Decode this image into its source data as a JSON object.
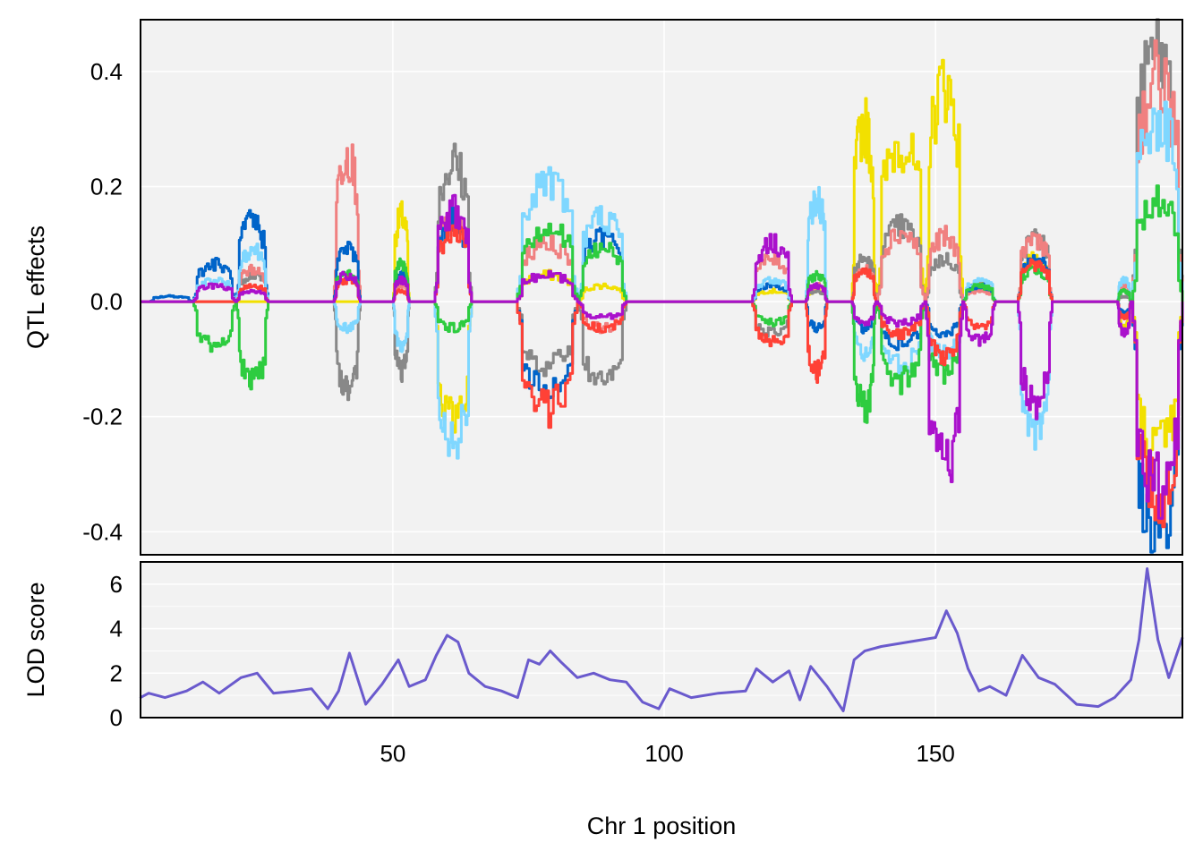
{
  "chart_data": [
    {
      "type": "line",
      "ylabel": "QTL effects",
      "xlabel": "Chr 1 position",
      "xlim": [
        3.5,
        195.5
      ],
      "ylim": [
        -0.44,
        0.49
      ],
      "x_ticks": [
        50,
        100,
        150
      ],
      "y_ticks": [
        -0.4,
        -0.2,
        0.0,
        0.2,
        0.4
      ],
      "y_tick_labels": [
        "-0.4",
        "-0.2",
        "0.0",
        "0.2",
        "0.4"
      ],
      "grid": true,
      "legend": "none",
      "colors": [
        "#F2E000",
        "#888888",
        "#F08080",
        "#0064C9",
        "#7FD7FF",
        "#2ECC40",
        "#FF4136",
        "#AA11CC"
      ],
      "effect_regions": [
        [
          5.0,
          13.0,
          [
            0,
            0,
            0,
            0.01,
            0,
            0,
            0,
            0
          ]
        ],
        [
          13.0,
          21.0,
          [
            0,
            0,
            0,
            0.07,
            0.04,
            -0.08,
            0,
            0.03
          ]
        ],
        [
          21.0,
          27.0,
          [
            0,
            0.05,
            0.06,
            0.15,
            0.1,
            -0.15,
            0.03,
            0.02
          ]
        ],
        [
          39.0,
          44.0,
          [
            0,
            -0.16,
            0.28,
            0.1,
            -0.05,
            0.05,
            0.04,
            0.05
          ]
        ],
        [
          50.0,
          53.0,
          [
            0.16,
            -0.13,
            0.03,
            0.05,
            -0.08,
            0.07,
            0.02,
            0.04
          ]
        ],
        [
          57.5,
          64.5,
          [
            -0.22,
            0.26,
            0.15,
            0.15,
            -0.27,
            -0.05,
            0.13,
            0.17
          ]
        ],
        [
          72.5,
          84.0,
          [
            0.05,
            -0.12,
            0.11,
            -0.17,
            0.23,
            0.14,
            -0.2,
            0.05
          ]
        ],
        [
          84.0,
          93.0,
          [
            0.03,
            -0.16,
            -0.05,
            0.12,
            0.16,
            0.1,
            -0.05,
            -0.03
          ]
        ],
        [
          116.0,
          123.5,
          [
            0.02,
            -0.06,
            0.08,
            0.03,
            0.04,
            -0.04,
            -0.08,
            0.11
          ]
        ],
        [
          126.0,
          130.0,
          [
            0.02,
            0.02,
            0.03,
            -0.05,
            0.19,
            0.05,
            -0.13,
            0.03
          ]
        ],
        [
          134.5,
          139.0,
          [
            0.33,
            0.08,
            0.06,
            -0.05,
            -0.1,
            -0.2,
            0.06,
            -0.04
          ]
        ],
        [
          139.0,
          148.0,
          [
            0.3,
            0.14,
            0.13,
            -0.08,
            -0.12,
            -0.15,
            -0.06,
            -0.04
          ]
        ],
        [
          148.0,
          155.0,
          [
            0.41,
            0.08,
            0.12,
            -0.06,
            -0.1,
            -0.13,
            -0.1,
            -0.31
          ]
        ],
        [
          155.0,
          161.0,
          [
            0.03,
            0.03,
            0.02,
            0.03,
            0.04,
            0.03,
            -0.05,
            -0.07
          ]
        ],
        [
          165.0,
          171.5,
          [
            0.08,
            0.12,
            0.12,
            0.08,
            -0.25,
            0.06,
            0.07,
            -0.19
          ]
        ],
        [
          183.5,
          186.0,
          [
            -0.05,
            0.01,
            0.03,
            -0.02,
            0.04,
            0.02,
            -0.03,
            -0.06
          ]
        ],
        [
          186.0,
          195.5,
          [
            -0.28,
            0.47,
            0.42,
            -0.43,
            0.35,
            0.19,
            -0.37,
            -0.35
          ]
        ]
      ]
    },
    {
      "type": "line",
      "ylabel": "LOD score",
      "xlabel": "Chr 1 position",
      "xlim": [
        3.5,
        195.5
      ],
      "ylim": [
        0,
        7
      ],
      "x_ticks": [
        50,
        100,
        150
      ],
      "y_ticks": [
        0,
        2,
        4,
        6
      ],
      "y_tick_labels": [
        "0",
        "2",
        "4",
        "6"
      ],
      "grid": true,
      "legend": "none",
      "color": "#6A5ACD",
      "x": [
        3.5,
        5,
        8,
        12,
        15,
        18,
        22,
        25,
        28,
        32,
        35,
        38,
        40,
        42,
        45,
        48,
        51,
        53,
        56,
        58,
        60,
        62,
        64,
        67,
        70,
        73,
        75,
        77,
        79,
        81,
        84,
        87,
        90,
        93,
        96,
        99,
        101,
        105,
        110,
        115,
        117,
        120,
        123,
        125,
        127,
        130,
        133,
        135,
        137,
        140,
        145,
        150,
        152,
        154,
        156,
        158,
        160,
        163,
        166,
        169,
        172,
        176,
        180,
        183,
        186,
        187.5,
        189,
        191,
        193,
        195.5
      ],
      "y": [
        0.9,
        1.1,
        0.9,
        1.2,
        1.6,
        1.1,
        1.8,
        2.0,
        1.1,
        1.2,
        1.3,
        0.4,
        1.2,
        2.9,
        0.6,
        1.5,
        2.6,
        1.4,
        1.7,
        2.8,
        3.7,
        3.4,
        2.0,
        1.4,
        1.2,
        0.9,
        2.6,
        2.4,
        3.0,
        2.5,
        1.8,
        2.0,
        1.7,
        1.6,
        0.7,
        0.4,
        1.3,
        0.9,
        1.1,
        1.2,
        2.2,
        1.6,
        2.1,
        0.8,
        2.3,
        1.4,
        0.3,
        2.6,
        3.0,
        3.2,
        3.4,
        3.6,
        4.8,
        3.8,
        2.2,
        1.2,
        1.4,
        1.0,
        2.8,
        1.8,
        1.5,
        0.6,
        0.5,
        0.9,
        1.7,
        3.5,
        6.7,
        3.5,
        1.8,
        3.6
      ]
    }
  ]
}
